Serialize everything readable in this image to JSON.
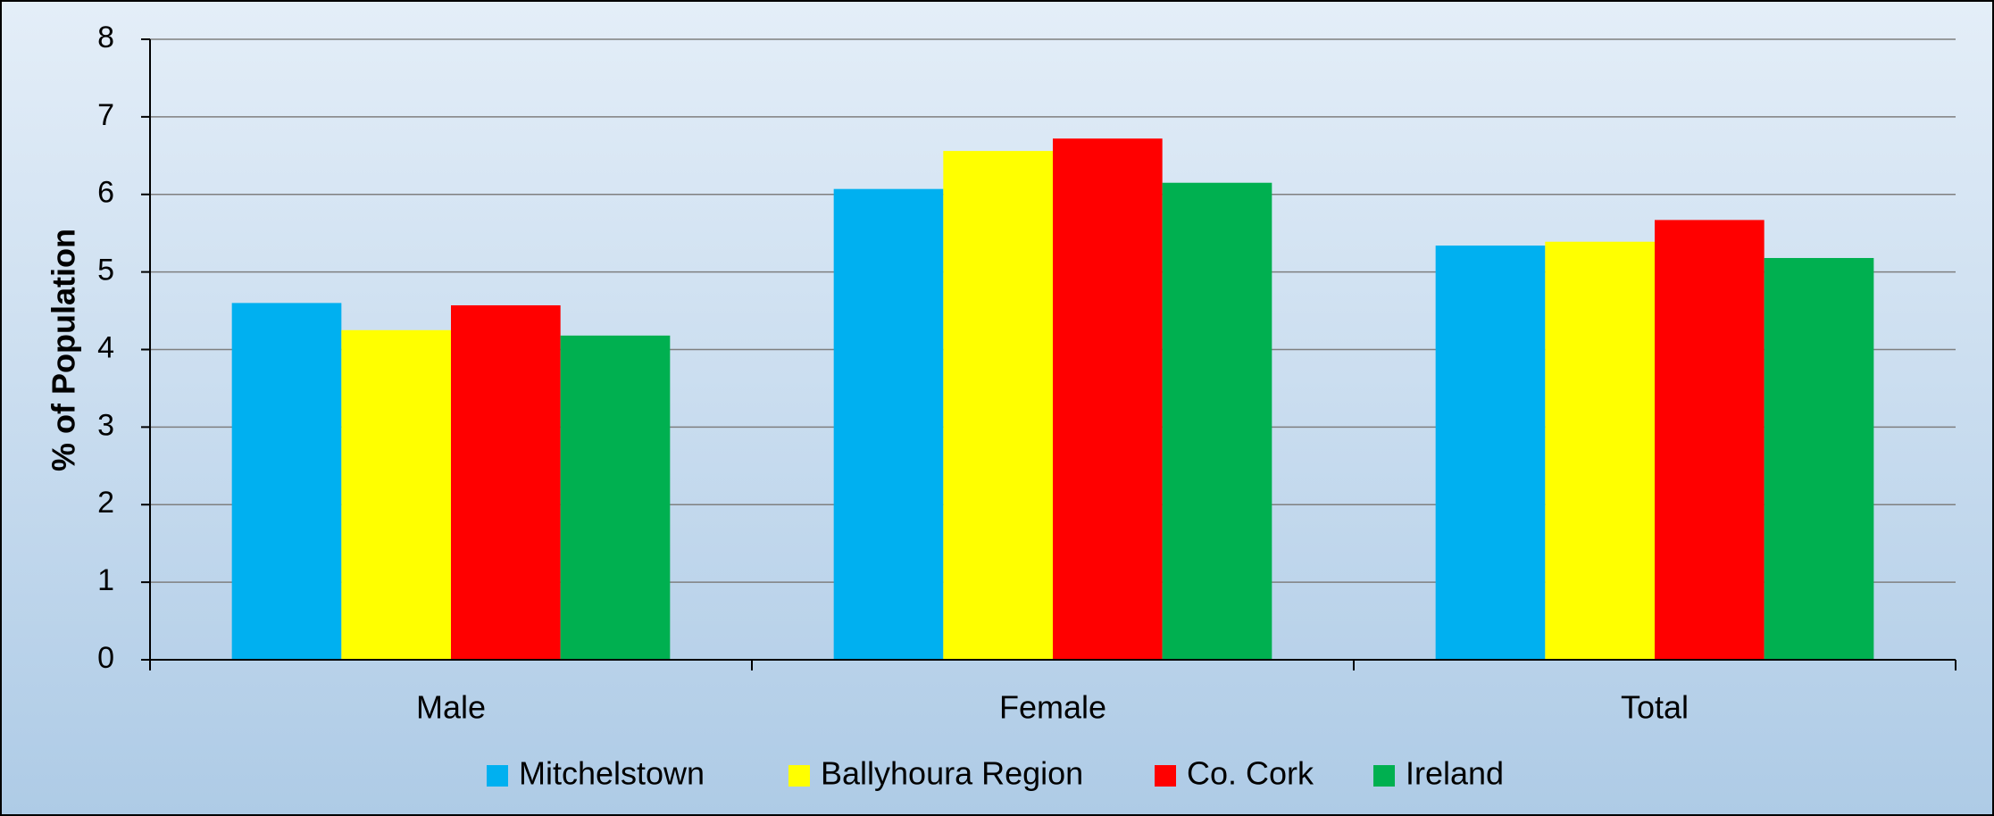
{
  "chart_data": {
    "type": "bar",
    "y_label": "% of Population",
    "categories": [
      "Male",
      "Female",
      "Total"
    ],
    "series": [
      {
        "name": "Mitchelstown",
        "color": "#00b0f0",
        "values": [
          4.6,
          6.07,
          5.34
        ]
      },
      {
        "name": "Ballyhoura Region",
        "color": "#ffff00",
        "values": [
          4.25,
          6.56,
          5.39
        ]
      },
      {
        "name": "Co. Cork",
        "color": "#ff0000",
        "values": [
          4.57,
          6.72,
          5.67
        ]
      },
      {
        "name": "Ireland",
        "color": "#00b050",
        "values": [
          4.18,
          6.15,
          5.18
        ]
      }
    ],
    "ylim": [
      0,
      8
    ],
    "yticks": [
      0,
      1,
      2,
      3,
      4,
      5,
      6,
      7,
      8
    ],
    "grid": true,
    "legend": "bottom"
  }
}
